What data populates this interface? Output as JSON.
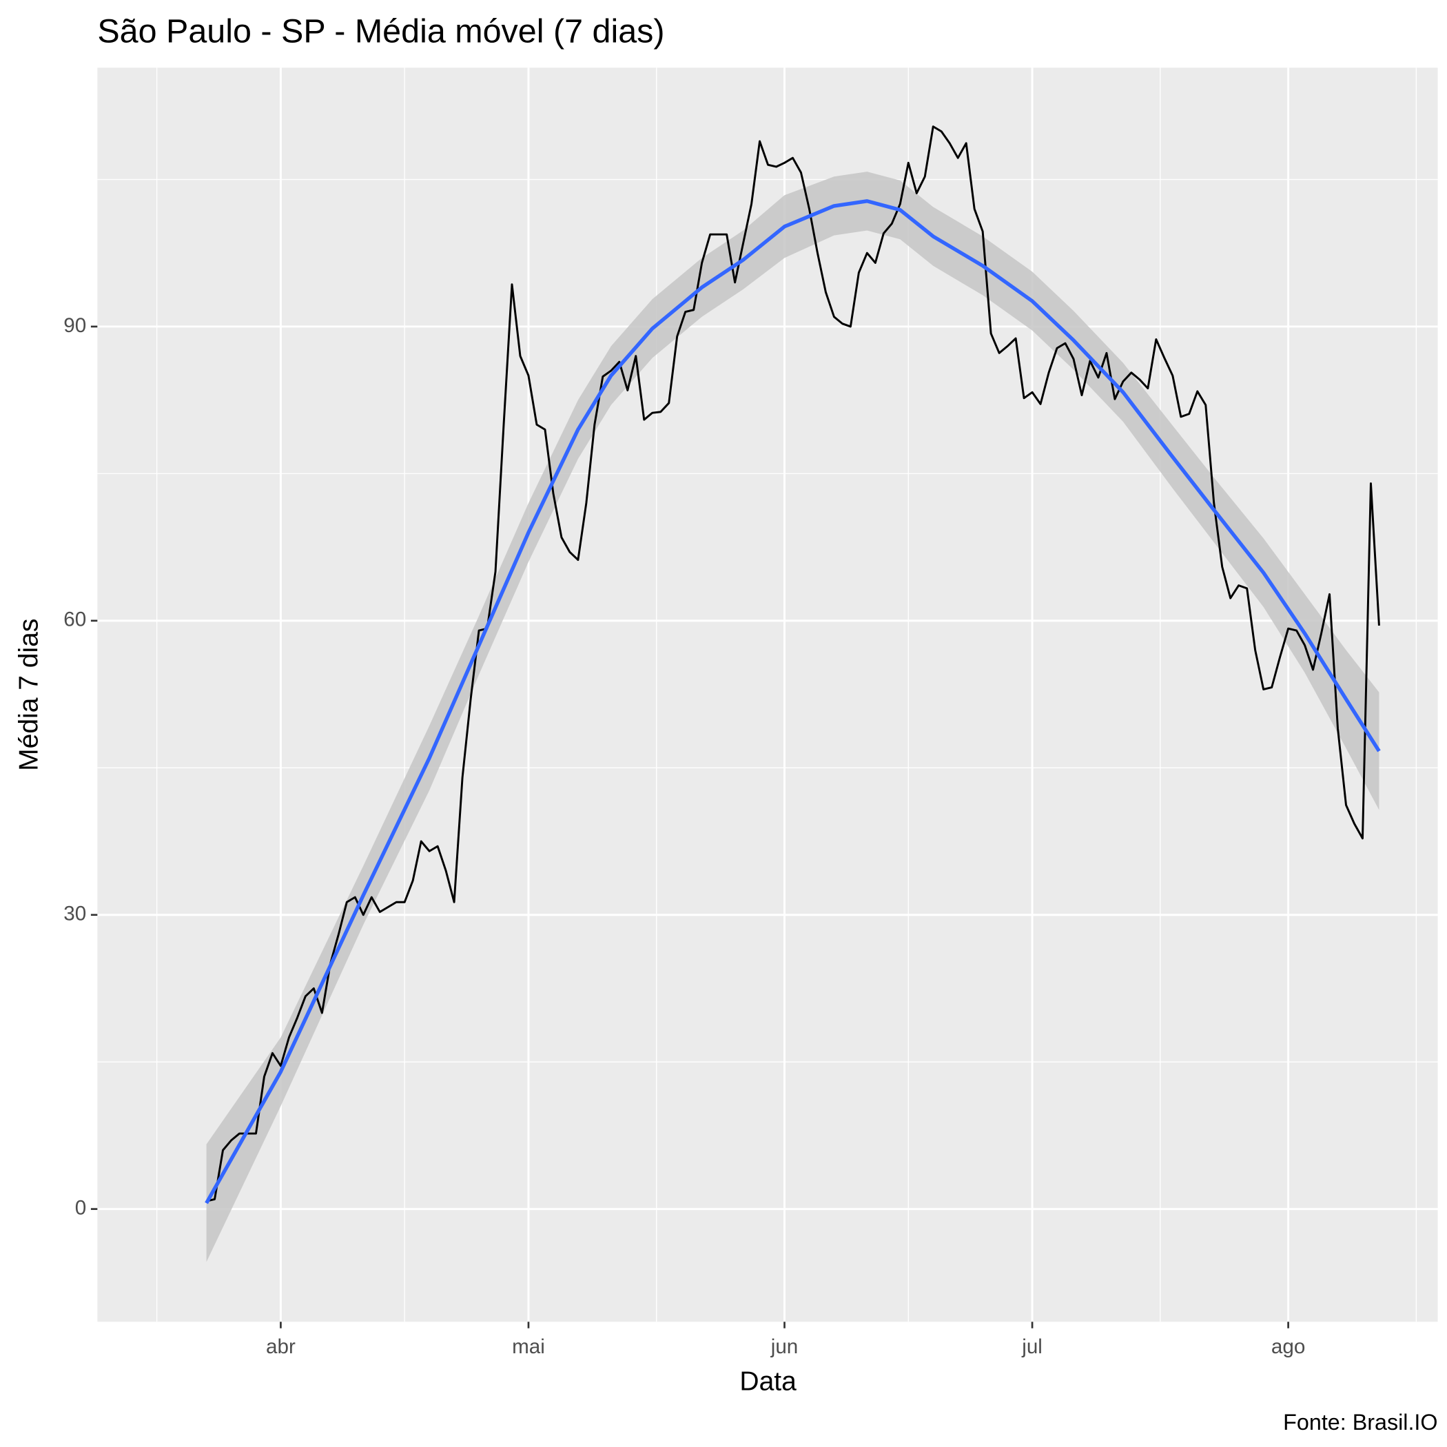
{
  "chart_data": {
    "type": "line",
    "title": "São Paulo - SP - Média móvel (7 dias)",
    "xlabel": "Data",
    "ylabel": "Média 7 dias",
    "caption": "Fonte: Brasil.IO",
    "x": [
      83,
      84,
      85,
      86,
      87,
      88,
      89,
      90,
      91,
      92,
      93,
      94,
      95,
      96,
      97,
      98,
      99,
      100,
      101,
      102,
      103,
      104,
      105,
      106,
      107,
      108,
      109,
      110,
      111,
      112,
      113,
      114,
      115,
      116,
      117,
      118,
      119,
      120,
      121,
      122,
      123,
      124,
      125,
      126,
      127,
      128,
      129,
      130,
      131,
      132,
      133,
      134,
      135,
      136,
      137,
      138,
      139,
      140,
      141,
      142,
      143,
      144,
      145,
      146,
      147,
      148,
      149,
      150,
      151,
      152,
      153,
      154,
      155,
      156,
      157,
      158,
      159,
      160,
      161,
      162,
      163,
      164,
      165,
      166,
      167,
      168,
      169,
      170,
      171,
      172,
      173,
      174,
      175,
      176,
      177,
      178,
      179,
      180,
      181,
      182,
      183,
      184,
      185,
      186,
      187,
      188,
      189,
      190,
      191,
      192,
      193,
      194,
      195,
      196,
      197,
      198,
      199,
      200,
      201,
      202,
      203,
      204,
      205,
      206,
      207,
      208,
      209,
      210,
      211,
      212,
      213,
      214,
      215,
      216,
      217,
      218,
      219,
      220,
      221,
      222,
      223,
      224,
      225
    ],
    "values": [
      0.8,
      1.0,
      6.0,
      7.0,
      7.7,
      7.7,
      7.7,
      13.5,
      15.9,
      14.6,
      17.5,
      19.5,
      21.7,
      22.5,
      20.0,
      25.0,
      28.0,
      31.3,
      31.8,
      30.0,
      31.8,
      30.3,
      30.8,
      31.3,
      31.3,
      33.5,
      37.5,
      36.5,
      37.0,
      34.5,
      31.3,
      44.0,
      52.0,
      59.0,
      59.2,
      65.0,
      80.0,
      94.3,
      87.0,
      85.0,
      80.0,
      79.5,
      73.0,
      68.5,
      67.0,
      66.2,
      72.0,
      80.0,
      84.9,
      85.5,
      86.4,
      83.5,
      87.0,
      80.5,
      81.2,
      81.3,
      82.2,
      89.0,
      91.5,
      91.7,
      96.5,
      99.4,
      99.4,
      99.4,
      94.5,
      98.5,
      102.5,
      108.9,
      106.5,
      106.3,
      106.7,
      107.2,
      105.7,
      102.0,
      97.5,
      93.5,
      91.0,
      90.3,
      90.0,
      95.5,
      97.5,
      96.5,
      99.5,
      100.5,
      102.5,
      106.7,
      103.6,
      105.3,
      110.4,
      109.9,
      108.7,
      107.2,
      108.7,
      102.0,
      99.7,
      89.3,
      87.3,
      88.0,
      88.8,
      82.7,
      83.3,
      82.1,
      85.3,
      87.8,
      88.3,
      86.7,
      83.0,
      86.5,
      84.8,
      87.3,
      82.6,
      84.4,
      85.3,
      84.6,
      83.7,
      88.7,
      86.8,
      85.0,
      80.8,
      81.1,
      83.4,
      82.0,
      72.0,
      65.5,
      62.3,
      63.6,
      63.3,
      57.0,
      53.0,
      53.2,
      56.3,
      59.2,
      59.0,
      57.5,
      55.0,
      58.7,
      62.7,
      49.0,
      41.2,
      39.3,
      37.8,
      74.0,
      59.5
    ],
    "color": "#000000",
    "smooth": {
      "x": [
        83,
        92,
        102,
        110,
        116,
        122,
        128,
        132,
        137,
        143,
        148,
        153,
        159,
        163,
        167,
        171,
        177,
        183,
        188,
        194,
        200,
        205,
        211,
        216,
        221,
        225
      ],
      "values": [
        0.6,
        14,
        32,
        46,
        57.5,
        69,
        79.5,
        85,
        89.8,
        94,
        96.8,
        100.2,
        102.3,
        102.8,
        101.9,
        99.2,
        96.2,
        92.6,
        88.6,
        83.3,
        76.7,
        71.3,
        64.9,
        58.7,
        52,
        46.7
      ],
      "lower": [
        -5.4,
        10.5,
        29,
        42.7,
        54.5,
        66,
        76.5,
        82,
        86.8,
        91,
        93.8,
        97,
        99.3,
        99.8,
        98.9,
        96.2,
        93.2,
        89.6,
        85.6,
        80.3,
        73.5,
        68,
        61.4,
        54.7,
        47,
        40.7
      ],
      "upper": [
        6.6,
        17.5,
        35,
        49.3,
        60.5,
        72,
        82.5,
        88,
        92.8,
        97,
        99.8,
        103.4,
        105.3,
        105.8,
        104.9,
        102.2,
        99.2,
        95.6,
        91.6,
        86.3,
        79.9,
        74.6,
        68.4,
        62.7,
        57,
        52.7
      ],
      "color": "#3366ff",
      "band_color": "#c6c6c6"
    },
    "xlim": [
      69.8,
      232.1
    ],
    "ylim": [
      -11.5,
      116.4
    ],
    "xticks": [
      {
        "value": 92,
        "label": "abr"
      },
      {
        "value": 122,
        "label": "mai"
      },
      {
        "value": 153,
        "label": "jun"
      },
      {
        "value": 183,
        "label": "jul"
      },
      {
        "value": 214,
        "label": "ago"
      }
    ],
    "yticks": [
      0,
      30,
      60,
      90
    ],
    "grid": true,
    "panel_color": "#ebebeb"
  }
}
